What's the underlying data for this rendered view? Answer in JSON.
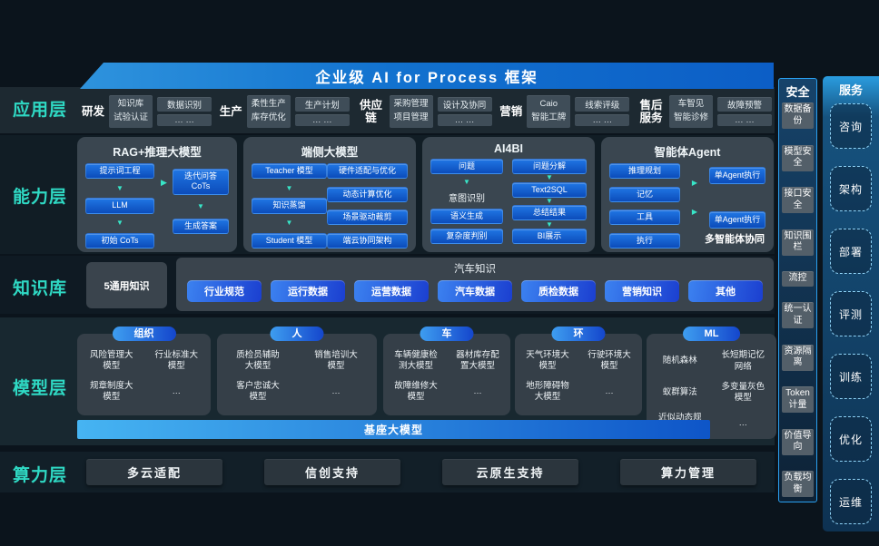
{
  "banner": {
    "title": "企业级 AI for Process 框架"
  },
  "layer_labels": [
    "应用层",
    "能力层",
    "知识库",
    "模型层",
    "算力层"
  ],
  "icons": {
    "arrow_down": "▼",
    "arrow_right": "▶"
  },
  "colors": {
    "accent_teal": "#2fd9c4",
    "chip_blue": "#1a63d4",
    "banner_blue": "#1272cf",
    "panel_gray": "#3a4650"
  },
  "app": {
    "groups": [
      {
        "name": "研发",
        "main": [
          "知识库",
          "试验认证"
        ],
        "side": [
          "数据识别",
          "… …"
        ]
      },
      {
        "name": "生产",
        "main": [
          "柔性生产",
          "库存优化"
        ],
        "side": [
          "生产计划",
          "… …"
        ]
      },
      {
        "name": "供应链",
        "main": [
          "采购管理",
          "项目管理"
        ],
        "side": [
          "设计及协同",
          "… …"
        ]
      },
      {
        "name": "营销",
        "main": [
          "Caio",
          "智能工牌"
        ],
        "side": [
          "线索评级",
          "… …"
        ]
      },
      {
        "name": "售后服务",
        "main": [
          "车智见",
          "智能诊修"
        ],
        "side": [
          "故障预警",
          "… …"
        ]
      }
    ]
  },
  "capability": {
    "rag": {
      "title": "RAG+推理大模型",
      "steps_left": [
        "提示词工程",
        "LLM",
        "初始 CoTs"
      ],
      "steps_right": [
        "迭代问答 CoTs",
        "生成答案"
      ]
    },
    "edge": {
      "title": "端侧大模型",
      "distill": [
        "Teacher 模型",
        "知识蒸馏",
        "Student 模型"
      ],
      "features": [
        "硬件适配与优化",
        "动态计算优化",
        "场景驱动裁剪",
        "端云协同架构"
      ]
    },
    "ai4bi": {
      "title": "AI4BI",
      "left": [
        "问题",
        "意图识别",
        "语义生成",
        "复杂度判别"
      ],
      "right": [
        "问题分解",
        "Text2SQL",
        "总结结果",
        "BI展示"
      ]
    },
    "agent": {
      "title": "智能体Agent",
      "modules": [
        "推理规划",
        "记忆",
        "工具",
        "执行"
      ],
      "exec": [
        "单Agent执行",
        "单Agent执行"
      ],
      "caption": "多智能体协同"
    }
  },
  "knowledge": {
    "general": "5通用知识",
    "domain_title": "汽车知识",
    "pills": [
      "行业规范",
      "运行数据",
      "运营数据",
      "汽车数据",
      "质检数据",
      "营销知识",
      "其他"
    ]
  },
  "models": {
    "groups": [
      {
        "name": "组织",
        "items": [
          "风险管理大模型",
          "行业标准大模型",
          "规章制度大模型",
          "…"
        ]
      },
      {
        "name": "人",
        "items": [
          "质检员辅助大模型",
          "销售培训大模型",
          "客户忠诚大模型",
          "…"
        ]
      },
      {
        "name": "车",
        "items": [
          "车辆健康检测大模型",
          "器材库存配置大模型",
          "故障维修大模型",
          "…"
        ]
      },
      {
        "name": "环",
        "items": [
          "天气环境大模型",
          "行驶环境大模型",
          "地形障碍物大模型",
          "…"
        ]
      },
      {
        "name": "ML",
        "items": [
          "随机森林",
          "长短期记忆网络",
          "蚁群算法",
          "多变量灰色模型",
          "近似动态规划",
          "…"
        ]
      }
    ],
    "base_banner": "基座大模型"
  },
  "compute": {
    "items": [
      "多云适配",
      "信创支持",
      "云原生支持",
      "算力管理"
    ]
  },
  "security": {
    "title": "安全",
    "items": [
      "数据备份",
      "模型安全",
      "接口安全",
      "知识围栏",
      "流控",
      "统一认证",
      "资源隔离",
      "Token计量",
      "价值导向",
      "负载均衡"
    ]
  },
  "service": {
    "title": "服务",
    "items": [
      "咨询",
      "架构",
      "部署",
      "评测",
      "训练",
      "优化",
      "运维"
    ]
  }
}
